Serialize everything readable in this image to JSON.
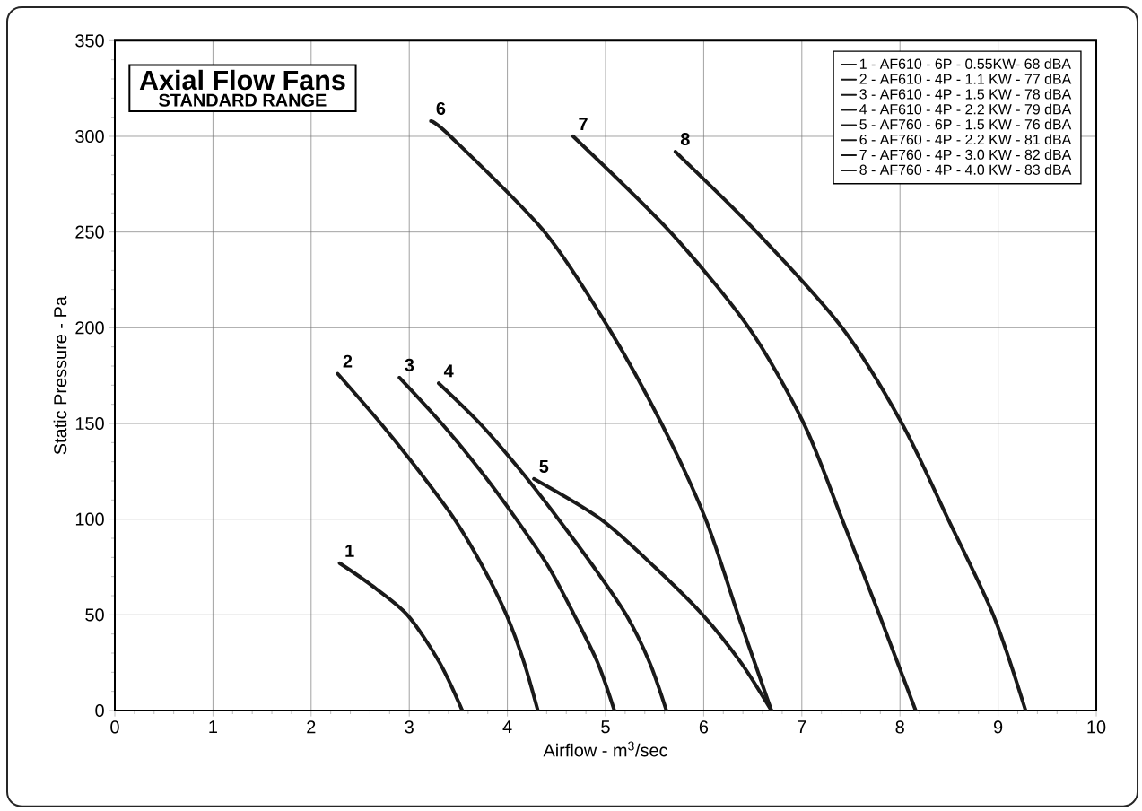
{
  "chart_data": {
    "type": "line",
    "title": "Axial Flow Fans",
    "subtitle": "STANDARD RANGE",
    "xlabel": "Airflow - m$^{3}$/sec",
    "ylabel": "Static Pressure - Pa",
    "xlim": [
      0,
      10
    ],
    "ylim": [
      0,
      350
    ],
    "xticks": [
      0,
      1,
      2,
      3,
      4,
      5,
      6,
      7,
      8,
      9,
      10
    ],
    "yticks": [
      0,
      50,
      100,
      150,
      200,
      250,
      300,
      350
    ],
    "grid": true,
    "legend": "top right",
    "line_style": "solid",
    "series": [
      {
        "name": "1 - AF610 - 6P - 0.55KW- 68 dBA",
        "color": "#1a1a1a",
        "x": [
          2.29,
          2.6,
          2.98,
          3.31,
          3.54
        ],
        "values": [
          77,
          66,
          50,
          25,
          0
        ]
      },
      {
        "name": "2 - AF610 - 4P - 1.1 KW - 77 dBA",
        "color": "#1a1a1a",
        "x": [
          2.27,
          2.71,
          3.1,
          3.46,
          3.75,
          3.99,
          4.17,
          4.31
        ],
        "values": [
          176,
          150,
          125,
          100,
          75,
          50,
          25,
          0
        ]
      },
      {
        "name": "3 - AF610 - 4P - 1.5 KW - 78 dBA",
        "color": "#1a1a1a",
        "x": [
          2.9,
          3.33,
          3.73,
          4.09,
          4.42,
          4.68,
          4.92,
          5.09
        ],
        "values": [
          174,
          150,
          125,
          100,
          75,
          50,
          25,
          0
        ]
      },
      {
        "name": "4 - AF610 - 4P - 2.2 KW - 79 dBA",
        "color": "#1a1a1a",
        "x": [
          3.3,
          3.72,
          4.14,
          4.52,
          4.88,
          5.21,
          5.45,
          5.62
        ],
        "values": [
          171,
          150,
          125,
          100,
          75,
          50,
          25,
          0
        ]
      },
      {
        "name": "5 - AF760 - 6P - 1.5 KW - 76 dBA",
        "color": "#1a1a1a",
        "x": [
          4.27,
          4.95,
          5.5,
          5.99,
          6.38,
          6.69
        ],
        "values": [
          121,
          100,
          75,
          50,
          25,
          0
        ]
      },
      {
        "name": "6 - AF760 - 4P - 2.2 KW - 81 dBA",
        "color": "#1a1a1a",
        "x": [
          3.22,
          3.42,
          4.38,
          5.03,
          5.57,
          6.02,
          6.35,
          6.69
        ],
        "values": [
          308,
          300,
          250,
          200,
          150,
          100,
          50,
          0
        ]
      },
      {
        "name": "7 - AF760 - 4P - 3.0 KW - 82 dBA",
        "color": "#1a1a1a",
        "x": [
          4.67,
          5.66,
          6.46,
          7.02,
          7.41,
          7.79,
          8.16
        ],
        "values": [
          300,
          250,
          200,
          150,
          100,
          50,
          0
        ]
      },
      {
        "name": "8 - AF760 - 4P - 4.0 KW - 83 dBA",
        "color": "#1a1a1a",
        "x": [
          5.71,
          6.54,
          7.41,
          8.02,
          8.49,
          8.95,
          9.28
        ],
        "values": [
          292,
          250,
          200,
          150,
          100,
          50,
          0
        ]
      }
    ],
    "annotations": [
      {
        "text": "1",
        "x": 2.29,
        "y": 77
      },
      {
        "text": "2",
        "x": 2.27,
        "y": 176
      },
      {
        "text": "3",
        "x": 2.9,
        "y": 174
      },
      {
        "text": "4",
        "x": 3.3,
        "y": 171
      },
      {
        "text": "5",
        "x": 4.27,
        "y": 121
      },
      {
        "text": "6",
        "x": 3.22,
        "y": 308
      },
      {
        "text": "7",
        "x": 4.67,
        "y": 300
      },
      {
        "text": "8",
        "x": 5.71,
        "y": 292
      }
    ]
  }
}
